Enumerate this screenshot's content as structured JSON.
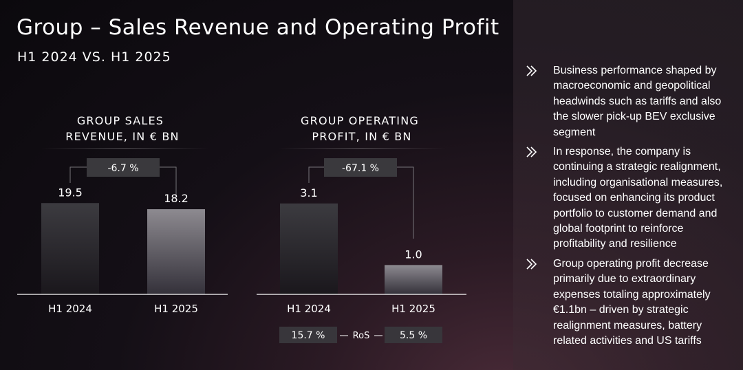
{
  "title": "Group – Sales Revenue and Operating Profit",
  "subtitle": "H1 2024 VS. H1 2025",
  "chart_data": [
    {
      "type": "bar",
      "title_lines": [
        "GROUP SALES",
        "REVENUE, IN € BN"
      ],
      "categories": [
        "H1 2024",
        "H1 2025"
      ],
      "values": [
        19.5,
        18.2
      ],
      "value_labels": [
        "19.5",
        "18.2"
      ],
      "change_label": "-6.7 %",
      "ylim": [
        0,
        23.8
      ]
    },
    {
      "type": "bar",
      "title_lines": [
        "GROUP OPERATING",
        "PROFIT, IN € BN"
      ],
      "categories": [
        "H1 2024",
        "H1 2025"
      ],
      "values": [
        3.1,
        1.0
      ],
      "value_labels": [
        "3.1",
        "1.0"
      ],
      "change_label": "-67.1 %",
      "ylim": [
        0,
        3.8
      ],
      "ros": {
        "label": "RoS",
        "values": [
          "15.7 %",
          "5.5 %"
        ]
      }
    }
  ],
  "bullets": [
    "Business performance shaped by macroeconomic and geopolitical headwinds such as tariffs and also the slower pick-up BEV exclusive segment",
    "In response, the company is continuing a strategic realignment, including organisational measures, focused on enhancing its product portfolio to customer demand and global footprint to reinforce profitability and resilience",
    "Group operating profit decrease primarily due to extraordinary expenses totaling approximately €1.1bn – driven by strategic realignment measures, battery related activities and US tariffs"
  ]
}
